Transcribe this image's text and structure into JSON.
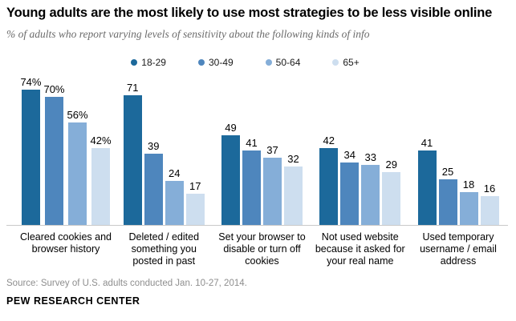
{
  "header": {
    "title": "Young adults are the most likely to use most strategies to be less visible online",
    "subtitle": "% of adults who report varying levels of sensitivity about the following kinds of info"
  },
  "footer": {
    "source": "Source: Survey of U.S. adults conducted Jan. 10-27, 2014.",
    "brand": "PEW RESEARCH CENTER"
  },
  "colors": {
    "age_18_29": "#1c699b",
    "age_30_49": "#4e86bd",
    "age_50_64": "#85aed8",
    "age_65_plus": "#cddeef",
    "axis_line": "#c9c9c9"
  },
  "chart_data": {
    "type": "bar",
    "title": "Young adults are the most likely to use most strategies to be less visible online",
    "subtitle": "% of adults who report varying levels of sensitivity about the following kinds of info",
    "categories": [
      "Cleared cookies and browser history",
      "Deleted / edited something you posted in past",
      "Set your browser to disable or turn off cookies",
      "Not used website because it asked for your real name",
      "Used temporary username / email address"
    ],
    "series": [
      {
        "name": "18-29",
        "color": "#1c699b",
        "values": [
          74,
          71,
          49,
          42,
          41
        ]
      },
      {
        "name": "30-49",
        "color": "#4e86bd",
        "values": [
          70,
          39,
          41,
          34,
          25
        ]
      },
      {
        "name": "50-64",
        "color": "#85aed8",
        "values": [
          56,
          24,
          37,
          33,
          18
        ]
      },
      {
        "name": "65+",
        "color": "#cddeef",
        "values": [
          42,
          17,
          32,
          29,
          16
        ]
      }
    ],
    "value_labels": [
      [
        "74%",
        "70%",
        "56%",
        "42%"
      ],
      [
        "71",
        "39",
        "24",
        "17"
      ],
      [
        "49",
        "41",
        "37",
        "32"
      ],
      [
        "42",
        "34",
        "33",
        "29"
      ],
      [
        "41",
        "25",
        "18",
        "16"
      ]
    ],
    "xlabel": "",
    "ylabel": "",
    "ylim": [
      0,
      80
    ],
    "grid": false,
    "legend_position": "top",
    "value_label_position": "above-bar"
  }
}
